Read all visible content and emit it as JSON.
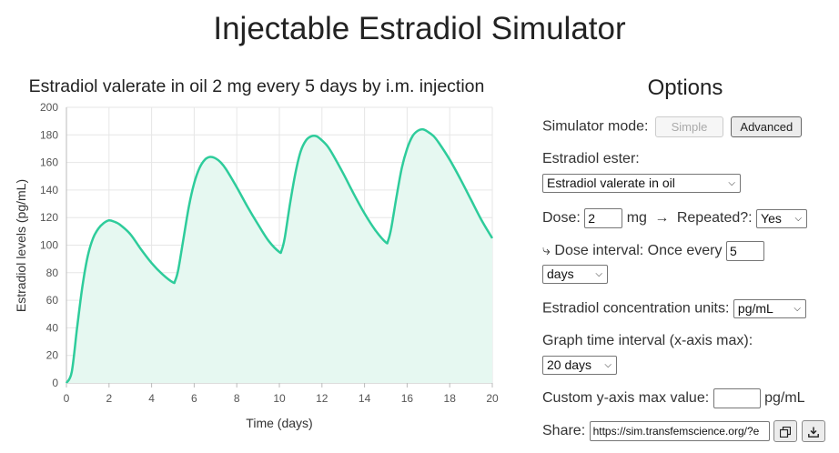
{
  "page": {
    "title": "Injectable Estradiol Simulator"
  },
  "chart_data": {
    "type": "area",
    "title": "Estradiol valerate in oil 2 mg every 5 days by i.m. injection",
    "xlabel": "Time (days)",
    "ylabel": "Estradiol levels (pg/mL)",
    "xlim": [
      0,
      20
    ],
    "ylim": [
      0,
      200
    ],
    "x_ticks": [
      0,
      2,
      4,
      6,
      8,
      10,
      12,
      14,
      16,
      18,
      20
    ],
    "y_ticks": [
      0,
      20,
      40,
      60,
      80,
      100,
      120,
      140,
      160,
      180,
      200
    ],
    "grid": true,
    "line_color": "#2ecc9b",
    "fill_color": "#e6f8f1",
    "series": [
      {
        "x": [
          0,
          0.25,
          0.5,
          0.75,
          1,
          1.25,
          1.5,
          1.75,
          2,
          2.25,
          2.5,
          3,
          3.5,
          4,
          4.5,
          5,
          5.1,
          5.25,
          5.5,
          5.75,
          6,
          6.25,
          6.5,
          6.75,
          7,
          7.25,
          7.5,
          8,
          8.5,
          9,
          9.5,
          10,
          10.1,
          10.25,
          10.5,
          10.75,
          11,
          11.25,
          11.5,
          11.75,
          12,
          12.25,
          12.5,
          13,
          13.5,
          14,
          14.5,
          15,
          15.1,
          15.25,
          15.5,
          15.75,
          16,
          16.25,
          16.5,
          16.75,
          17,
          17.25,
          17.5,
          18,
          18.5,
          19,
          19.5,
          20
        ],
        "y": [
          0,
          8,
          40,
          70,
          92,
          105,
          112,
          116,
          118,
          117,
          115,
          108,
          97,
          87,
          79,
          73,
          74,
          82,
          105,
          128,
          145,
          156,
          162,
          164,
          163,
          160,
          155,
          142,
          128,
          115,
          103,
          95,
          96,
          105,
          130,
          152,
          168,
          176,
          179,
          179,
          176,
          172,
          166,
          152,
          137,
          123,
          111,
          102,
          103,
          112,
          135,
          156,
          170,
          179,
          183,
          184,
          182,
          179,
          174,
          162,
          148,
          133,
          118,
          105
        ]
      }
    ]
  },
  "options": {
    "title": "Options",
    "mode_label": "Simulator mode:",
    "mode_simple": "Simple",
    "mode_advanced": "Advanced",
    "ester_label": "Estradiol ester:",
    "ester_value": "Estradiol valerate in oil",
    "dose_label": "Dose:",
    "dose_value": "2",
    "dose_unit": "mg",
    "arrow": "→",
    "repeated_label": "Repeated?:",
    "repeated_value": "Yes",
    "interval_label": "⤷ Dose interval: Once every",
    "interval_value": "5",
    "interval_unit_value": "days",
    "units_label": "Estradiol concentration units:",
    "units_value": "pg/mL",
    "graph_interval_label": "Graph time interval (x-axis max):",
    "graph_interval_value": "20 days",
    "ymax_label": "Custom y-axis max value:",
    "ymax_value": "",
    "ymax_unit": "pg/mL",
    "share_label": "Share:",
    "share_url": "https://sim.transfemscience.org/?e"
  },
  "icons": {
    "copy": "copy-icon",
    "download": "download-icon",
    "select": "chevron-down-icon"
  }
}
